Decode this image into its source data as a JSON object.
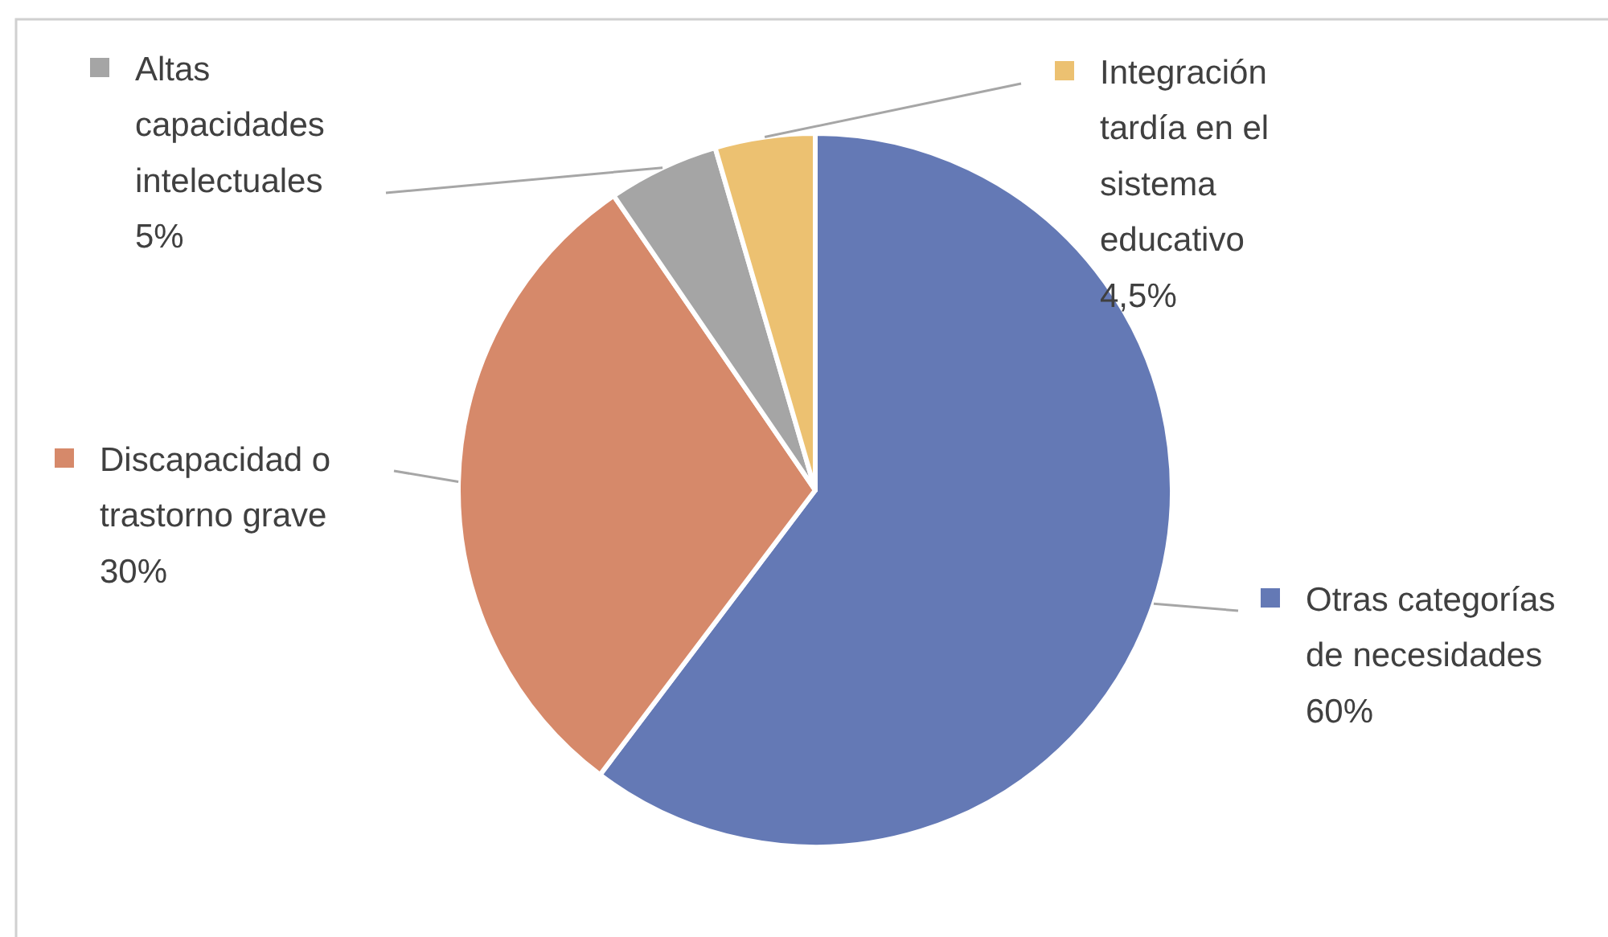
{
  "chart_data": {
    "type": "pie",
    "categories": [
      "Otras categorías de necesidades",
      "Discapacidad o trastorno grave",
      "Altas capacidades intelectuales",
      "Integración tardía en el sistema educativo"
    ],
    "values": [
      60,
      30,
      5,
      4.5
    ],
    "value_labels": [
      "60%",
      "30%",
      "5%",
      "4,5%"
    ],
    "colors": [
      "#6479b5",
      "#d6896a",
      "#a5a5a5",
      "#ecc171"
    ],
    "legend": "right"
  }
}
